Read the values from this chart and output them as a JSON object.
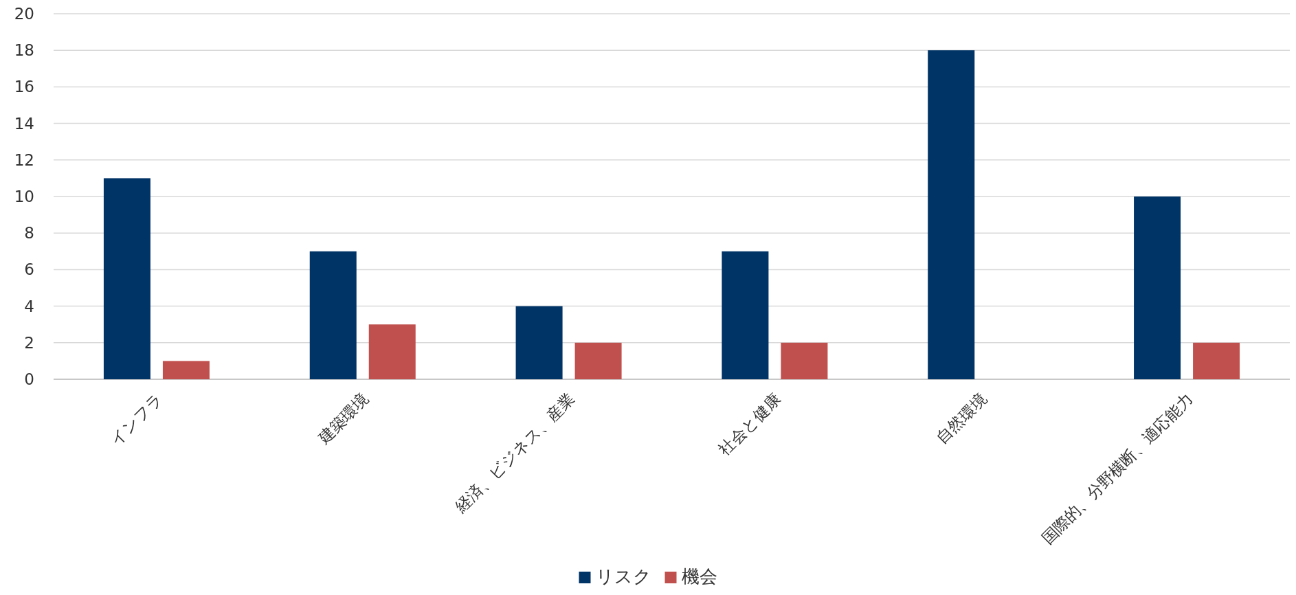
{
  "chart_data": {
    "type": "bar",
    "categories": [
      "インフラ",
      "建築環境",
      "経済、ビジネス、産業",
      "社会と健康",
      "自然環境",
      "国際的、分野横断、適応能力"
    ],
    "series": [
      {
        "name": "リスク",
        "color": "#003366",
        "values": [
          11,
          7,
          4,
          7,
          18,
          10
        ]
      },
      {
        "name": "機会",
        "color": "#c0504d",
        "values": [
          1,
          3,
          2,
          2,
          0,
          2
        ]
      }
    ],
    "ylim": [
      0,
      20
    ],
    "yticks": [
      0,
      2,
      4,
      6,
      8,
      10,
      12,
      14,
      16,
      18,
      20
    ],
    "grid": "y",
    "legend": "bottom"
  }
}
